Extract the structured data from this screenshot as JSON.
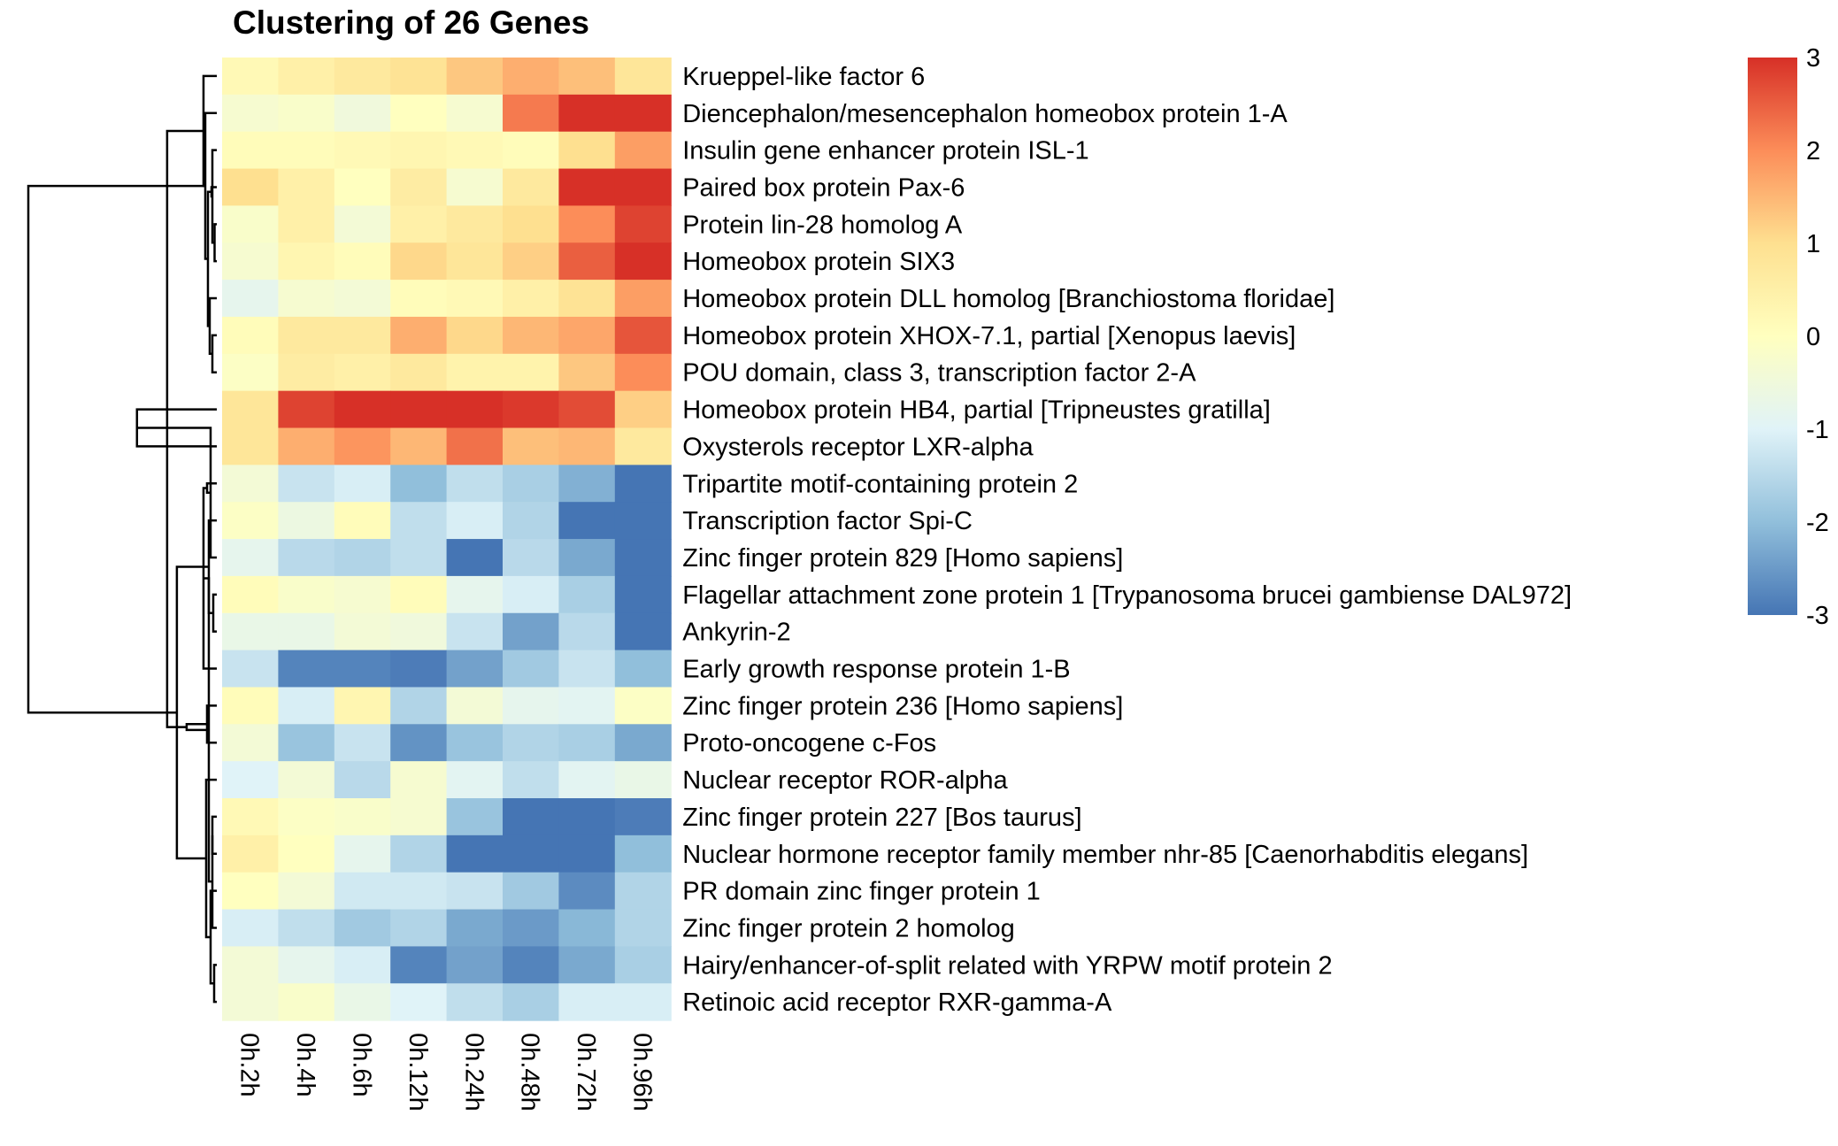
{
  "chart_data": {
    "type": "heatmap",
    "title": "Clustering of  26 Genes",
    "columns": [
      "0h.2h",
      "0h.4h",
      "0h.6h",
      "0h.12h",
      "0h.24h",
      "0h.48h",
      "0h.72h",
      "0h.96h"
    ],
    "rows": [
      "Krueppel-like factor 6",
      "Diencephalon/mesencephalon homeobox protein 1-A",
      "Insulin gene enhancer protein ISL-1",
      "Paired box protein Pax-6",
      "Protein lin-28 homolog A",
      "Homeobox protein SIX3",
      "Homeobox protein DLL homolog [Branchiostoma floridae]",
      "Homeobox protein XHOX-7.1, partial [Xenopus laevis]",
      "POU domain, class 3, transcription factor 2-A",
      "Homeobox protein HB4, partial [Tripneustes gratilla]",
      "Oxysterols receptor LXR-alpha",
      "Tripartite motif-containing protein 2",
      "Transcription factor Spi-C",
      "Zinc finger protein 829 [Homo sapiens]",
      "Flagellar attachment zone protein 1 [Trypanosoma brucei gambiense DAL972]",
      "Ankyrin-2",
      "Early growth response protein 1-B",
      "Zinc finger protein 236 [Homo sapiens]",
      "Proto-oncogene c-Fos",
      "Nuclear receptor ROR-alpha",
      "Zinc finger protein 227 [Bos taurus]",
      "Nuclear hormone receptor family member nhr-85 [Caenorhabditis elegans]",
      "PR domain zinc finger protein 1",
      "Zinc finger protein 2 homolog",
      "Hairy/enhancer-of-split related with YRPW motif protein 2",
      "Retinoic acid receptor RXR-gamma-A"
    ],
    "values": [
      [
        0.2,
        0.5,
        0.7,
        0.9,
        1.3,
        1.6,
        1.4,
        0.8
      ],
      [
        -0.3,
        -0.2,
        -0.5,
        0.0,
        -0.3,
        2.2,
        3.0,
        3.0
      ],
      [
        0.1,
        0.1,
        0.2,
        0.3,
        0.2,
        0.1,
        1.0,
        1.8
      ],
      [
        1.0,
        0.5,
        0.0,
        0.6,
        -0.3,
        0.7,
        3.0,
        3.0
      ],
      [
        -0.2,
        0.5,
        -0.4,
        0.5,
        0.7,
        1.0,
        2.0,
        2.8
      ],
      [
        -0.3,
        0.3,
        0.1,
        1.1,
        0.8,
        1.2,
        2.5,
        3.0
      ],
      [
        -0.8,
        -0.3,
        -0.4,
        0.1,
        0.2,
        0.5,
        0.9,
        1.8
      ],
      [
        0.1,
        0.7,
        0.7,
        1.6,
        1.1,
        1.5,
        1.7,
        2.6
      ],
      [
        -0.1,
        0.6,
        0.5,
        0.7,
        0.4,
        0.4,
        1.3,
        2.0
      ],
      [
        0.8,
        2.8,
        3.0,
        3.0,
        3.0,
        2.9,
        2.7,
        1.2
      ],
      [
        0.8,
        1.6,
        1.9,
        1.5,
        2.3,
        1.4,
        1.5,
        0.7
      ],
      [
        -0.4,
        -1.3,
        -1.1,
        -2.0,
        -1.4,
        -1.7,
        -2.2,
        -3.0
      ],
      [
        -0.1,
        -0.6,
        0.1,
        -1.4,
        -1.1,
        -1.6,
        -3.0,
        -3.0
      ],
      [
        -0.8,
        -1.5,
        -1.6,
        -1.4,
        -3.0,
        -1.5,
        -2.3,
        -3.0
      ],
      [
        0.1,
        -0.2,
        -0.3,
        0.1,
        -0.8,
        -1.1,
        -1.7,
        -3.0
      ],
      [
        -0.7,
        -0.7,
        -0.4,
        -0.5,
        -1.3,
        -2.4,
        -1.5,
        -3.0
      ],
      [
        -1.3,
        -2.8,
        -2.8,
        -2.9,
        -2.4,
        -1.8,
        -1.3,
        -2.0
      ],
      [
        0.1,
        -1.1,
        0.3,
        -1.6,
        -0.4,
        -0.8,
        -0.9,
        -0.1
      ],
      [
        -0.4,
        -1.9,
        -1.3,
        -2.6,
        -1.9,
        -1.6,
        -1.7,
        -2.3
      ],
      [
        -1.0,
        -0.4,
        -1.5,
        -0.3,
        -0.9,
        -1.4,
        -0.9,
        -0.7
      ],
      [
        0.2,
        -0.1,
        -0.2,
        -0.3,
        -1.9,
        -3.0,
        -3.0,
        -2.9
      ],
      [
        0.5,
        0.0,
        -0.8,
        -1.6,
        -3.0,
        -3.0,
        -3.0,
        -2.0
      ],
      [
        0.0,
        -0.4,
        -1.2,
        -1.2,
        -1.3,
        -1.8,
        -2.7,
        -1.6
      ],
      [
        -1.1,
        -1.4,
        -1.8,
        -1.6,
        -2.3,
        -2.5,
        -2.1,
        -1.6
      ],
      [
        -0.4,
        -0.8,
        -1.1,
        -2.8,
        -2.4,
        -2.8,
        -2.3,
        -1.7
      ],
      [
        -0.4,
        -0.2,
        -0.7,
        -1.0,
        -1.4,
        -1.7,
        -1.1,
        -1.1
      ]
    ],
    "color_scale": {
      "min": -3,
      "max": 3,
      "stops": [
        "#4575B4",
        "#91BFDB",
        "#E0F3F8",
        "#FFFFBF",
        "#FEE090",
        "#FC8D59",
        "#D73027"
      ]
    },
    "legend": {
      "position": "right",
      "ticks": [
        "3",
        "2",
        "1",
        "0",
        "-1",
        "-2",
        "-3"
      ],
      "tick_values": [
        3,
        2,
        1,
        0,
        -1,
        -2,
        -3
      ]
    },
    "row_dendrogram": {
      "leaf_order": [
        0,
        1,
        2,
        3,
        4,
        5,
        6,
        7,
        8,
        9,
        10,
        11,
        12,
        13,
        14,
        15,
        16,
        17,
        18,
        19,
        20,
        21,
        22,
        23,
        24,
        25
      ],
      "merges": [
        [
          4,
          5,
          0.05
        ],
        [
          2,
          26,
          0.1
        ],
        [
          3,
          27,
          0.12
        ],
        [
          7,
          8,
          0.1
        ],
        [
          6,
          29,
          0.16
        ],
        [
          28,
          30,
          0.2
        ],
        [
          1,
          31,
          0.26
        ],
        [
          0,
          32,
          0.3
        ],
        [
          9,
          10,
          1.8
        ],
        [
          14,
          15,
          0.08
        ],
        [
          13,
          34,
          0.14
        ],
        [
          12,
          35,
          0.18
        ],
        [
          11,
          36,
          0.22
        ],
        [
          17,
          18,
          0.22
        ],
        [
          16,
          38,
          0.3
        ],
        [
          20,
          21,
          0.1
        ],
        [
          24,
          25,
          0.06
        ],
        [
          23,
          41,
          0.1
        ],
        [
          22,
          42,
          0.14
        ],
        [
          40,
          43,
          0.18
        ],
        [
          19,
          44,
          0.24
        ],
        [
          39,
          45,
          0.68
        ],
        [
          37,
          46,
          0.9
        ],
        [
          33,
          47,
          1.12
        ],
        [
          32,
          48,
          4.25
        ]
      ]
    }
  }
}
